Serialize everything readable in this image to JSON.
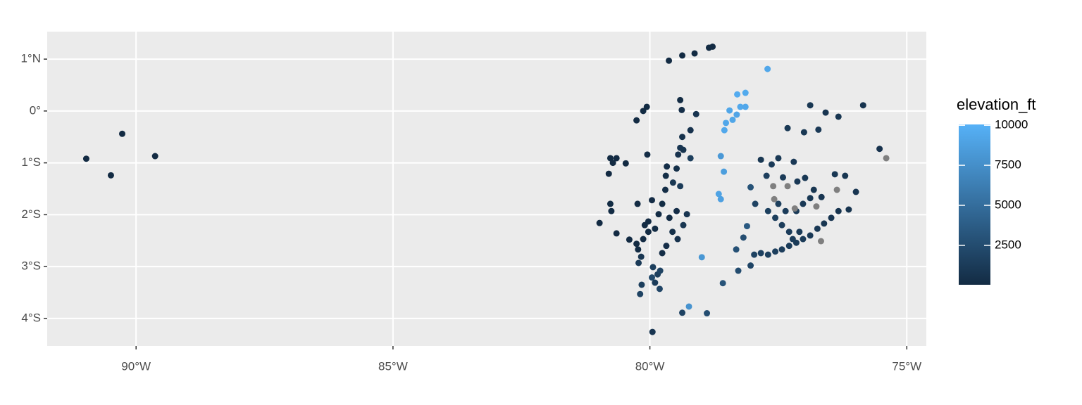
{
  "chart_data": {
    "type": "scatter",
    "legend_title": "elevation_ft",
    "xlim": [
      -91.73,
      -74.62
    ],
    "ylim": [
      -4.53,
      1.53
    ],
    "xticks": [
      {
        "value": -90,
        "label": "90°W"
      },
      {
        "value": -85,
        "label": "85°W"
      },
      {
        "value": -80,
        "label": "80°W"
      },
      {
        "value": -75,
        "label": "75°W"
      }
    ],
    "yticks": [
      {
        "value": 1,
        "label": "1°N"
      },
      {
        "value": 0,
        "label": "0°"
      },
      {
        "value": -1,
        "label": "1°S"
      },
      {
        "value": -2,
        "label": "2°S"
      },
      {
        "value": -3,
        "label": "3°S"
      },
      {
        "value": -4,
        "label": "4°S"
      }
    ],
    "colorlim": [
      40,
      10050
    ],
    "colorticks": [
      2500,
      5000,
      7500,
      10000
    ],
    "low_color": "#132B43",
    "high_color": "#56B1F7",
    "na_color": "#7F7F7F",
    "grid": true,
    "x": [
      -90.97,
      -90.49,
      -90.27,
      -89.63,
      -79.63,
      -79.37,
      -79.13,
      -78.85,
      -78.78,
      -77.71,
      -78.3,
      -78.14,
      -78.24,
      -78.14,
      -78.45,
      -78.31,
      -78.52,
      -78.55,
      -78.39,
      -78.62,
      -78.56,
      -78.66,
      -78.62,
      -78.99,
      -79.24,
      -80.77,
      -80.65,
      -80.72,
      -80.06,
      -80.13,
      -80.26,
      -80.05,
      -80.47,
      -80.8,
      -80.77,
      -80.98,
      -80.75,
      -80.65,
      -80.4,
      -80.26,
      -80.13,
      -80.03,
      -80.1,
      -80.23,
      -80.22,
      -80.16,
      -80.19,
      -79.95,
      -79.96,
      -79.85,
      -79.8,
      -79.9,
      -79.76,
      -79.68,
      -79.56,
      -79.46,
      -79.35,
      -79.28,
      -79.48,
      -79.62,
      -79.76,
      -79.83,
      -80.03,
      -79.9,
      -79.7,
      -79.69,
      -79.67,
      -79.48,
      -79.45,
      -79.41,
      -79.35,
      -79.37,
      -79.41,
      -79.38,
      -79.1,
      -79.21,
      -79.21,
      -79.55,
      -79.41,
      -80.24,
      -79.96,
      -80.17,
      -79.94,
      -79.81,
      -79.37,
      -78.89,
      -77.84,
      -77.63,
      -77.5,
      -77.2,
      -77.32,
      -76.88,
      -76.58,
      -76.33,
      -75.85,
      -77.0,
      -76.72,
      -75.53,
      -75.4,
      -78.04,
      -77.73,
      -77.41,
      -77.13,
      -76.98,
      -76.81,
      -76.66,
      -76.4,
      -76.2,
      -75.99,
      -76.13,
      -76.33,
      -76.47,
      -76.61,
      -76.74,
      -76.88,
      -77.02,
      -77.15,
      -77.29,
      -77.43,
      -77.56,
      -77.7,
      -77.84,
      -77.97,
      -78.04,
      -78.28,
      -78.58,
      -78.32,
      -78.18,
      -78.11,
      -77.95,
      -77.7,
      -77.56,
      -77.43,
      -77.29,
      -77.15,
      -77.02,
      -76.88,
      -77.5,
      -77.36,
      -77.22,
      -77.09,
      -77.6,
      -77.32,
      -77.58,
      -77.18,
      -76.76,
      -76.36,
      -76.67
    ],
    "y": [
      -0.92,
      -1.24,
      -0.44,
      -0.87,
      0.97,
      1.07,
      1.11,
      1.22,
      1.24,
      0.81,
      0.32,
      0.35,
      0.08,
      0.08,
      0.01,
      -0.07,
      -0.23,
      -0.37,
      -0.17,
      -0.87,
      -1.17,
      -1.6,
      -1.7,
      -2.82,
      -3.77,
      -0.91,
      -0.91,
      -1.0,
      0.08,
      0.0,
      -0.18,
      -0.84,
      -1.01,
      -1.21,
      -1.79,
      -2.16,
      -1.93,
      -2.36,
      -2.48,
      -2.56,
      -2.47,
      -2.33,
      -2.2,
      -2.67,
      -2.93,
      -3.35,
      -3.53,
      -4.26,
      -3.21,
      -3.15,
      -3.08,
      -3.31,
      -2.74,
      -2.6,
      -2.33,
      -2.47,
      -2.2,
      -1.99,
      -1.93,
      -2.06,
      -1.79,
      -1.99,
      -2.13,
      -2.27,
      -1.52,
      -1.25,
      -1.07,
      -1.11,
      -0.84,
      -0.71,
      -0.75,
      -0.5,
      0.21,
      0.02,
      -0.06,
      -0.37,
      -0.91,
      -1.38,
      -1.45,
      -1.79,
      -1.72,
      -2.81,
      -3.01,
      -3.43,
      -3.89,
      -3.9,
      -0.94,
      -1.03,
      -0.91,
      -0.98,
      -0.33,
      0.11,
      -0.03,
      -0.11,
      0.11,
      -0.41,
      -0.36,
      -0.73,
      -0.91,
      -1.47,
      -1.25,
      -1.28,
      -1.36,
      -1.29,
      -1.52,
      -1.66,
      -1.22,
      -1.25,
      -1.56,
      -1.9,
      -1.93,
      -2.06,
      -2.17,
      -2.27,
      -2.4,
      -2.47,
      -2.54,
      -2.6,
      -2.67,
      -2.71,
      -2.77,
      -2.74,
      -2.77,
      -2.98,
      -3.08,
      -3.32,
      -2.67,
      -2.44,
      -2.22,
      -1.79,
      -1.93,
      -2.06,
      -2.2,
      -2.33,
      -1.93,
      -1.79,
      -1.68,
      -1.79,
      -1.93,
      -2.47,
      -2.33,
      -1.45,
      -1.45,
      -1.7,
      -1.88,
      -1.84,
      -1.52,
      -2.51
    ],
    "elevation": [
      30,
      20,
      60,
      40,
      50,
      30,
      20,
      40,
      30,
      9300,
      9600,
      9500,
      9400,
      9300,
      9200,
      9100,
      9300,
      9400,
      9200,
      8200,
      8600,
      9000,
      8800,
      8100,
      7800,
      60,
      50,
      40,
      30,
      40,
      60,
      200,
      40,
      60,
      100,
      50,
      80,
      40,
      30,
      20,
      40,
      30,
      60,
      80,
      1200,
      1500,
      1800,
      800,
      2200,
      1500,
      1800,
      1300,
      200,
      300,
      400,
      600,
      900,
      800,
      300,
      150,
      100,
      200,
      60,
      80,
      200,
      250,
      300,
      400,
      600,
      800,
      700,
      500,
      100,
      300,
      800,
      600,
      1500,
      900,
      1200,
      100,
      150,
      900,
      1500,
      2000,
      1800,
      2600,
      900,
      1200,
      1000,
      1100,
      1000,
      900,
      800,
      900,
      700,
      1000,
      1100,
      600,
      null,
      3000,
      1500,
      1200,
      1100,
      1000,
      900,
      800,
      1000,
      900,
      800,
      700,
      700,
      800,
      900,
      1000,
      1100,
      1200,
      1200,
      1300,
      1400,
      1500,
      1600,
      1700,
      1800,
      2000,
      2500,
      3000,
      2800,
      2600,
      3500,
      1800,
      1600,
      1500,
      1400,
      1300,
      1200,
      1100,
      1000,
      1500,
      1400,
      1300,
      1200,
      null,
      null,
      null,
      null,
      null,
      null,
      null
    ]
  }
}
